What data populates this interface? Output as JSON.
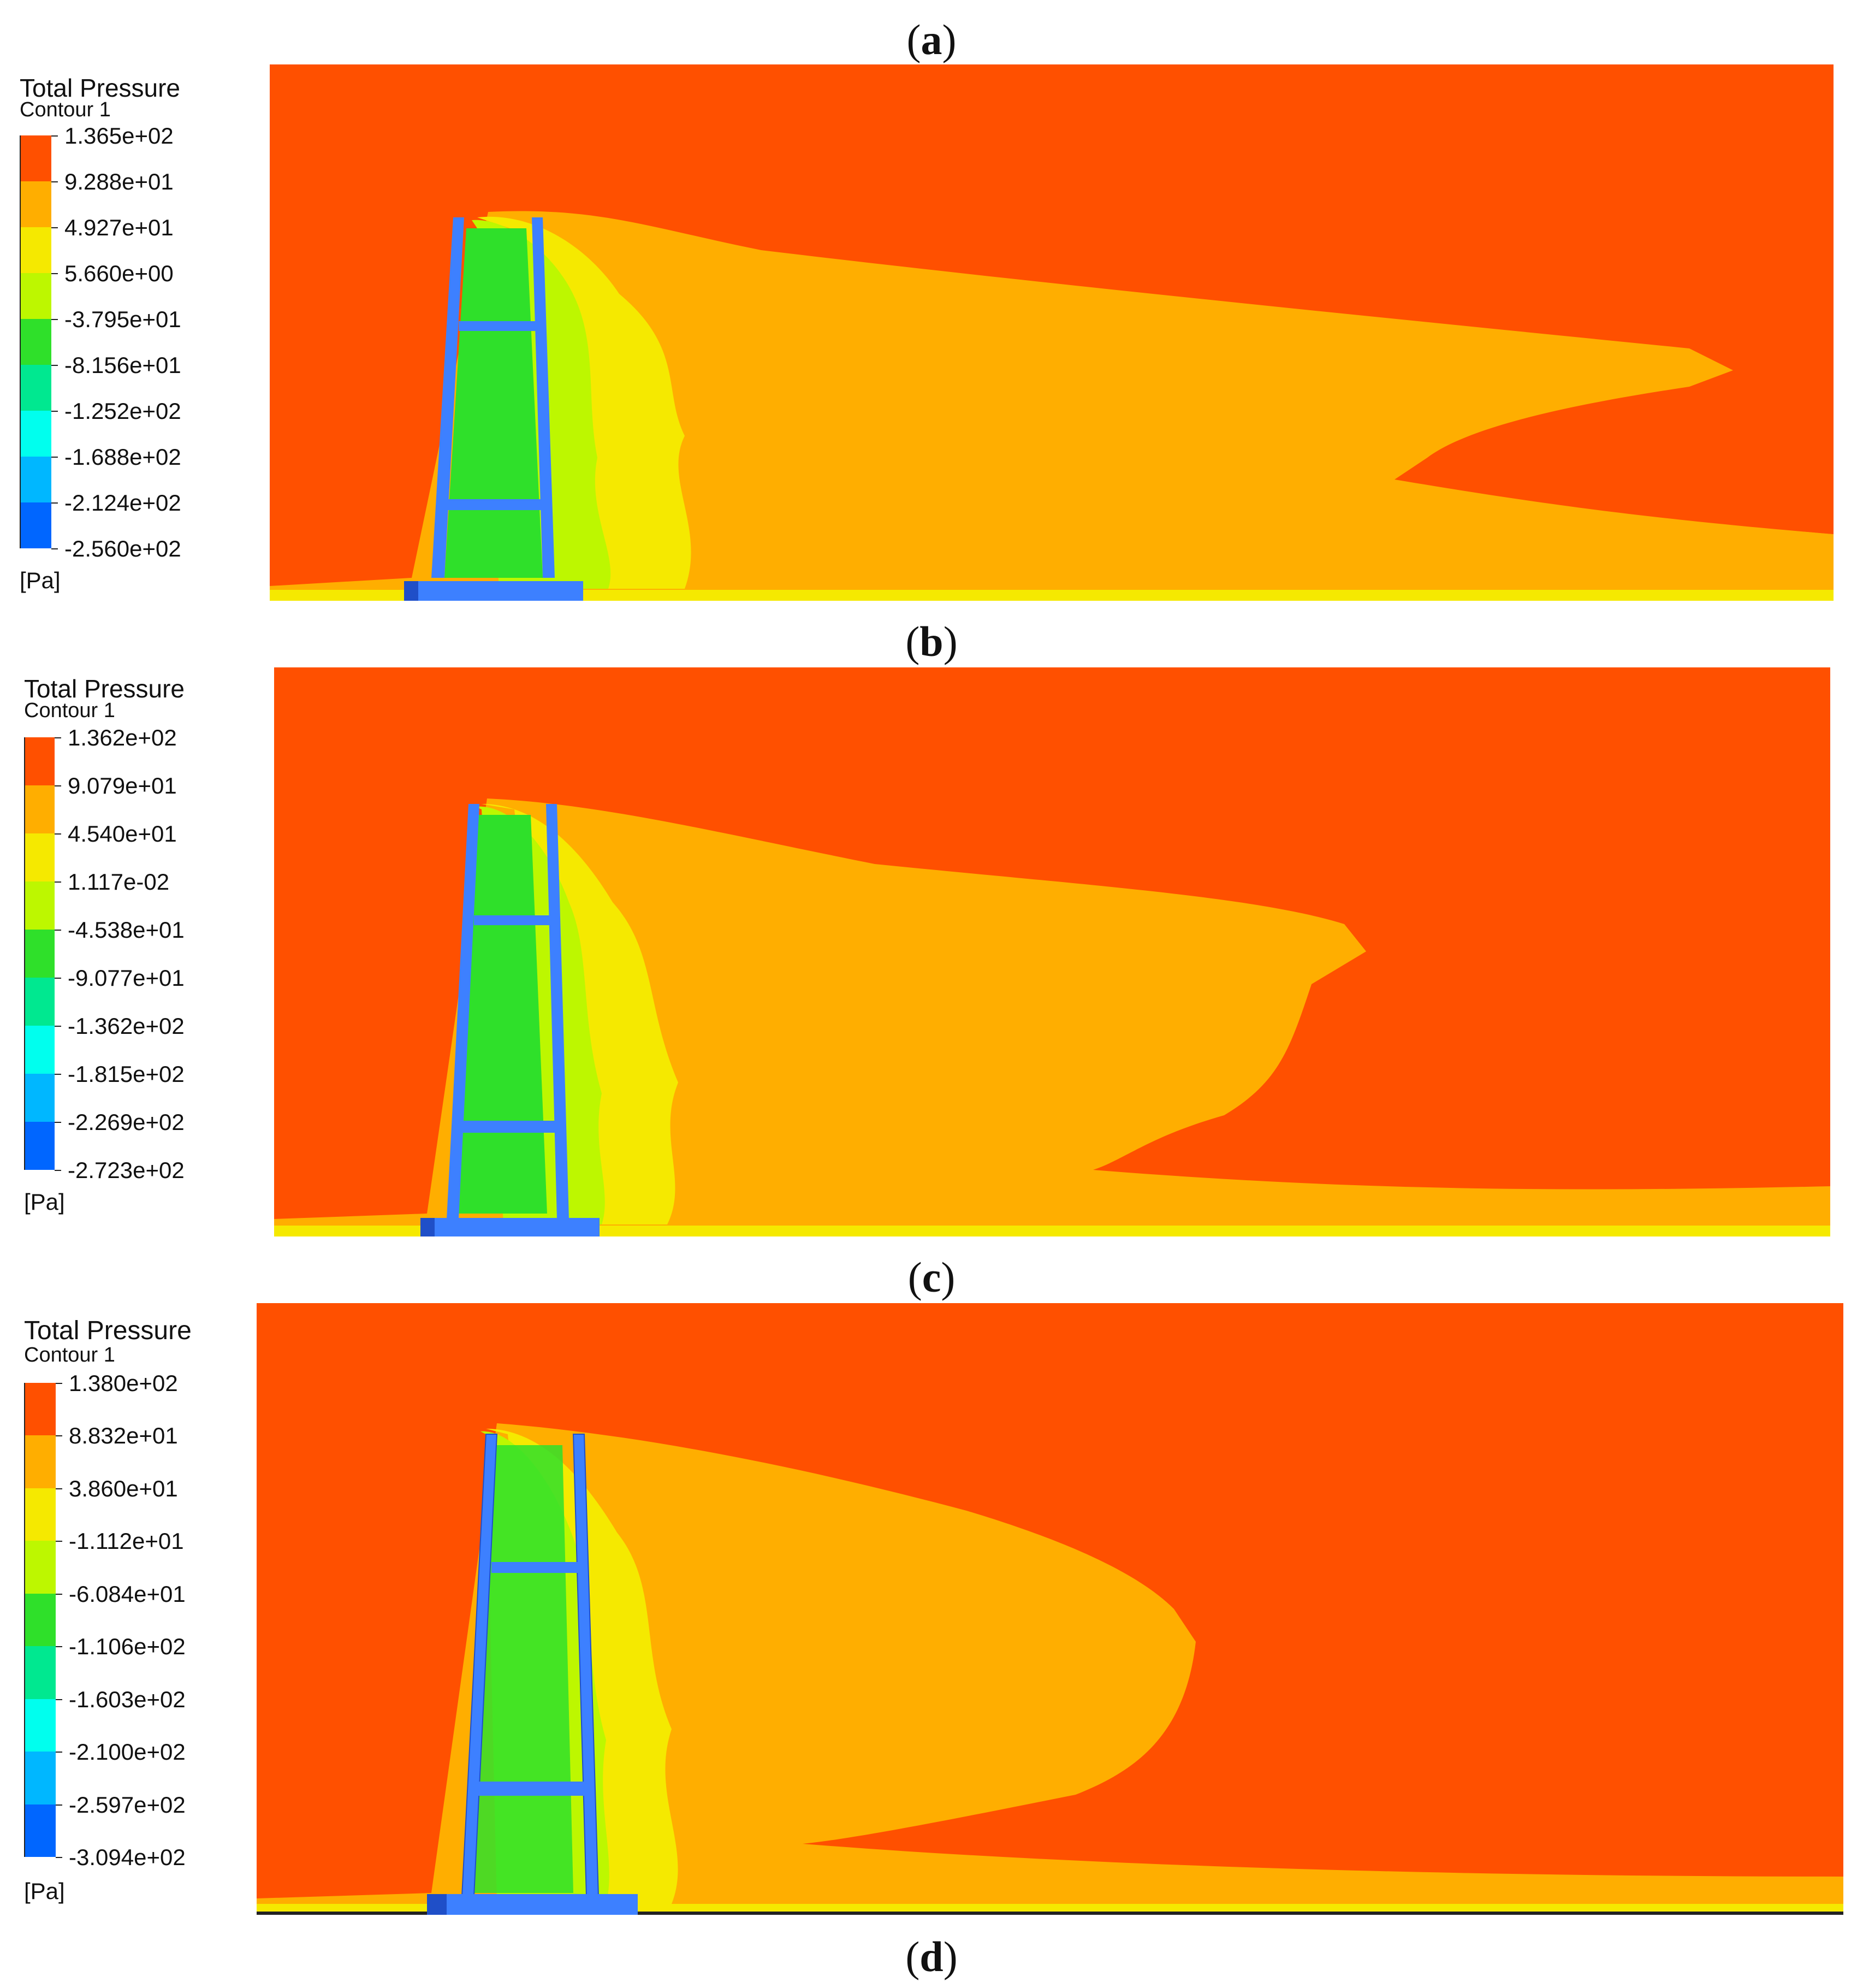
{
  "panels": [
    {
      "caption_letter": "a",
      "legend": {
        "title": "Total Pressure",
        "subtitle": "Contour 1",
        "unit": "[Pa]",
        "ticks": [
          "1.365e+02",
          "9.288e+01",
          "4.927e+01",
          "5.660e+00",
          "-3.795e+01",
          "-8.156e+01",
          "-1.252e+02",
          "-1.688e+02",
          "-2.124e+02",
          "-2.560e+02"
        ]
      }
    },
    {
      "caption_letter": "b",
      "legend": {
        "title": "Total Pressure",
        "subtitle": "Contour 1",
        "unit": "[Pa]",
        "ticks": [
          "1.362e+02",
          "9.079e+01",
          "4.540e+01",
          "1.117e-02",
          "-4.538e+01",
          "-9.077e+01",
          "-1.362e+02",
          "-1.815e+02",
          "-2.269e+02",
          "-2.723e+02"
        ]
      }
    },
    {
      "caption_letter": "c",
      "legend": {
        "title": "Total Pressure",
        "subtitle": "Contour 1",
        "unit": "[Pa]",
        "ticks": [
          "1.380e+02",
          "8.832e+01",
          "3.860e+01",
          "-1.112e+01",
          "-6.084e+01",
          "-1.106e+02",
          "-1.603e+02",
          "-2.100e+02",
          "-2.597e+02",
          "-3.094e+02"
        ]
      }
    }
  ],
  "last_caption_letter": "d",
  "colors": {
    "scale": [
      "#ff5000",
      "#ffae00",
      "#f5e900",
      "#bdf700",
      "#2fe02a",
      "#00e890",
      "#00ffee",
      "#00b7ff",
      "#0066ff"
    ],
    "tower": "#3d80ff",
    "tower_dark": "#1f4fc8"
  }
}
